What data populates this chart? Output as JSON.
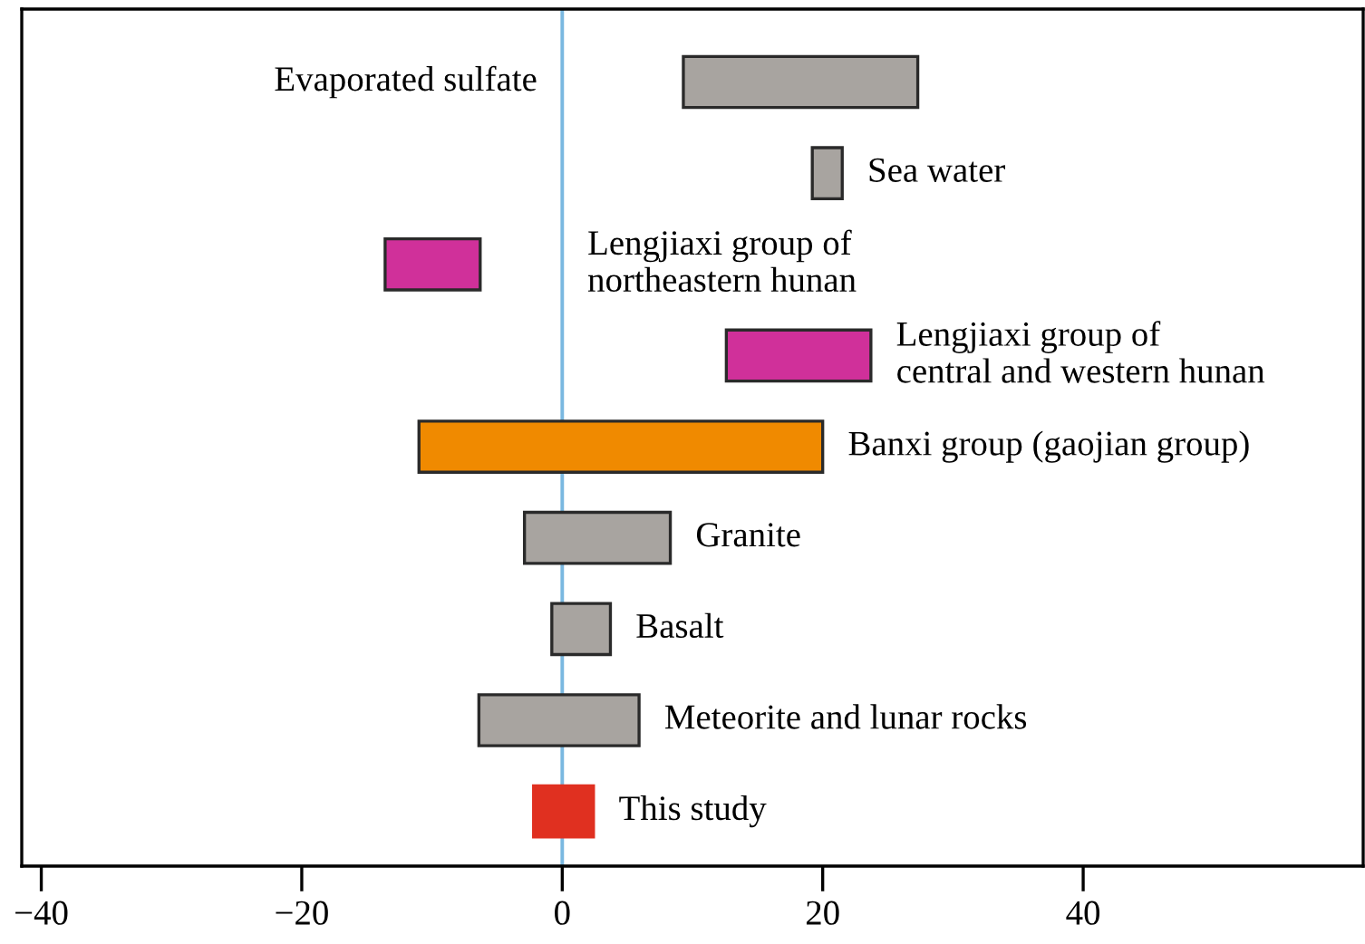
{
  "chart_data": {
    "type": "bar",
    "orientation": "horizontal",
    "categories": [
      "Evaporated sulfate",
      "Sea water",
      "Lengjiaxi group of\nnortheastern hunan",
      "Lengjiaxi group of\ncentral and western hunan",
      "Banxi group (gaojian group)",
      "Granite",
      "Basalt",
      "Meteorite and lunar rocks",
      "This study"
    ],
    "base": [
      9.3,
      19.2,
      -13.6,
      12.6,
      -11.0,
      -2.9,
      -0.8,
      -6.4,
      -2.2
    ],
    "values": [
      18.0,
      2.3,
      7.3,
      11.1,
      31.0,
      11.2,
      4.5,
      12.3,
      4.6
    ],
    "colors": [
      "#a8a4a0",
      "#a8a4a0",
      "#d0309a",
      "#d0309a",
      "#f08a00",
      "#a8a4a0",
      "#a8a4a0",
      "#a8a4a0",
      "#e03020"
    ],
    "xlim": [
      -41.5,
      61.5
    ],
    "xticks": [
      {
        "value": -40,
        "label": "−40"
      },
      {
        "value": -20,
        "label": "−20"
      },
      0,
      20,
      40
    ],
    "tick_labels": "x",
    "grid": false,
    "legend": false,
    "ref_lines": [
      {
        "axis": "x",
        "value": 0,
        "color": "#7ab8e0"
      }
    ]
  }
}
